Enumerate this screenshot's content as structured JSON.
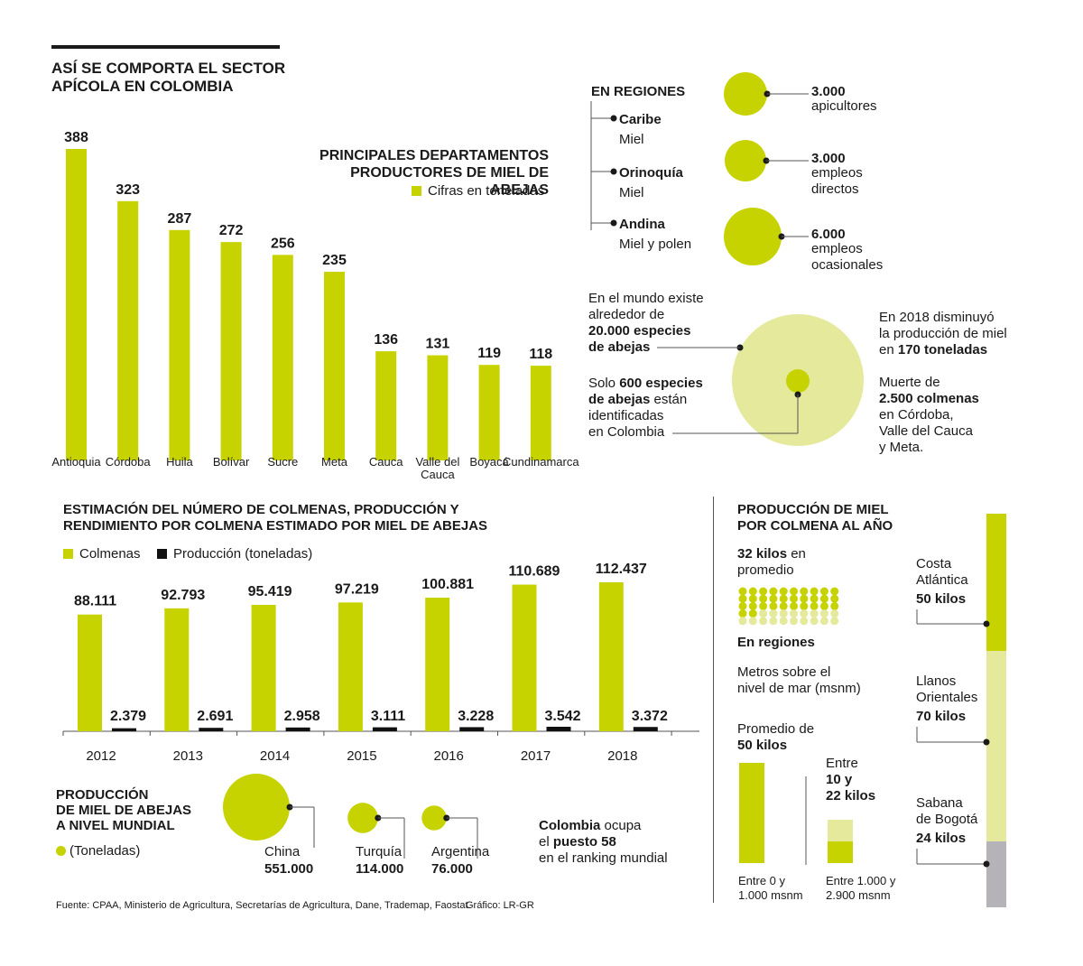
{
  "title": "ASÍ SE COMPORTA EL SECTOR\nAPÍCOLA EN COLOMBIA",
  "colors": {
    "accent": "#c7d300",
    "light": "#e4e99c",
    "dark": "#111111",
    "grey": "#b5b3b8",
    "line": "#555555"
  },
  "chart_data": [
    {
      "type": "bar",
      "title": "PRINCIPALES DEPARTAMENTOS\nPRODUCTORES DE MIEL DE ABEJAS",
      "legend": "Cifras en toneladas",
      "categories": [
        "Antioquia",
        "Córdoba",
        "Huila",
        "Bolívar",
        "Sucre",
        "Meta",
        "Cauca",
        "Valle del\nCauca",
        "Boyacá",
        "Cundinamarca"
      ],
      "values": [
        388,
        323,
        287,
        272,
        256,
        235,
        136,
        131,
        119,
        118
      ],
      "value_labels": [
        "388",
        "323",
        "287",
        "272",
        "256",
        "235",
        "136",
        "131",
        "119",
        "118"
      ],
      "ylim": [
        0,
        388
      ]
    },
    {
      "type": "bar",
      "title": "ESTIMACIÓN DEL NÚMERO DE COLMENAS, PRODUCCIÓN Y\nRENDIMIENTO POR COLMENA ESTIMADO POR MIEL DE ABEJAS",
      "categories": [
        "2012",
        "2013",
        "2014",
        "2015",
        "2016",
        "2017",
        "2018"
      ],
      "series": [
        {
          "name": "Colmenas",
          "values": [
            88111,
            92793,
            95419,
            97219,
            100881,
            110689,
            112437
          ],
          "labels": [
            "88.111",
            "92.793",
            "95.419",
            "97.219",
            "100.881",
            "110.689",
            "112.437"
          ]
        },
        {
          "name": "Producción (toneladas)",
          "values": [
            2379,
            2691,
            2958,
            3111,
            3228,
            3542,
            3372
          ],
          "labels": [
            "2.379",
            "2.691",
            "2.958",
            "3.111",
            "3.228",
            "3.542",
            "3.372"
          ]
        }
      ]
    },
    {
      "type": "bubble",
      "title": "PRODUCCIÓN\nDE MIEL DE ABEJAS\nA NIVEL MUNDIAL",
      "legend": "(Toneladas)",
      "categories": [
        "China",
        "Turquía",
        "Argentina"
      ],
      "values": [
        551000,
        114000,
        76000
      ],
      "value_labels": [
        "551.000",
        "114.000",
        "76.000"
      ]
    }
  ],
  "regiones": {
    "heading": "EN REGIONES",
    "items": [
      {
        "name": "Caribe",
        "product": "Miel"
      },
      {
        "name": "Orinoquía",
        "product": "Miel"
      },
      {
        "name": "Andina",
        "product": "Miel y polen"
      }
    ],
    "stats": [
      {
        "value": "3.000",
        "value_num": 3000,
        "label": "apicultores"
      },
      {
        "value": "3.000",
        "value_num": 3000,
        "label": "empleos\ndirectos"
      },
      {
        "value": "6.000",
        "value_num": 6000,
        "label": "empleos\nocasionales"
      }
    ]
  },
  "especies": {
    "mundo_pre": "En el mundo existe\n alrededor de",
    "mundo_bold": "20.000 especies\nde abejas",
    "solo_pre": "Solo ",
    "solo_bold1": "600 especies",
    "solo_bold2": "de abejas",
    "solo_post": " están\nidentificadas\nen Colombia",
    "disminuyo_pre": "En 2018 disminuyó\nla producción de miel\nen ",
    "disminuyo_bold": "170 toneladas",
    "muerte_pre": "Muerte de",
    "muerte_bold": "2.500 colmenas",
    "muerte_post": "en Córdoba,\nValle del Cauca\ny Meta."
  },
  "colombia_rank": {
    "bold1": "Colombia",
    "t1": " ocupa",
    "t2": "el ",
    "bold2": "puesto 58",
    "t3": "en el ranking mundial"
  },
  "produccion_colmena": {
    "title": "PRODUCCIÓN DE MIEL\nPOR COLMENA AL AÑO",
    "promedio_bold": "32 kilos",
    "promedio_post": " en\npromedio",
    "dots_total": 50,
    "dots_filled": 32,
    "en_regiones": "En regiones",
    "msnm": "Metros sobre el\nnivel de mar (msnm)",
    "prom_pre": "Promedio de",
    "prom_bold": "50 kilos",
    "entre_pre": "Entre",
    "entre_bold": "10 y\n22 kilos",
    "bar1_label": "Entre 0 y\n1.000 msnm",
    "bar2_label": "Entre 1.000 y\n2.900 msnm",
    "regions": [
      {
        "name": "Costa\nAtlántica",
        "value": "50 kilos",
        "kg": 50
      },
      {
        "name": "Llanos\nOrientales",
        "value": "70 kilos",
        "kg": 70
      },
      {
        "name": "Sabana\nde Bogotá",
        "value": "24 kilos",
        "kg": 24
      }
    ]
  },
  "footer": {
    "fuente": "Fuente: CPAA, Ministerio de Agricultura, Secretarías de Agricultura, Dane, Trademap, Faostat.",
    "grafico": "Gráfico: LR-GR"
  }
}
